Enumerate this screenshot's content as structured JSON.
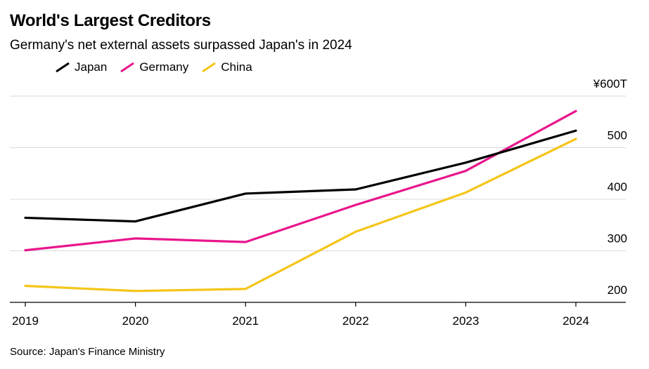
{
  "chart_data": {
    "type": "line",
    "title": "World's Largest Creditors",
    "subtitle": "Germany's net external assets surpassed Japan's in 2024",
    "source": "Source: Japan's Finance Ministry",
    "x": [
      "2019",
      "2020",
      "2021",
      "2022",
      "2023",
      "2024"
    ],
    "y_ticks": [
      "¥600T",
      "500",
      "400",
      "300",
      "200"
    ],
    "y_tick_values": [
      600,
      500,
      400,
      300,
      200
    ],
    "ylim": [
      180,
      600
    ],
    "grid": true,
    "legend_position": "top-left",
    "series": [
      {
        "name": "Japan",
        "color": "#000000",
        "values": [
          364,
          357,
          411,
          419,
          471,
          533
        ]
      },
      {
        "name": "Germany",
        "color": "#e8168c",
        "values": [
          301,
          324,
          317,
          389,
          455,
          571
        ]
      },
      {
        "name": "China",
        "color": "#f5c518",
        "values": [
          232,
          222,
          226,
          337,
          413,
          517
        ]
      }
    ]
  }
}
